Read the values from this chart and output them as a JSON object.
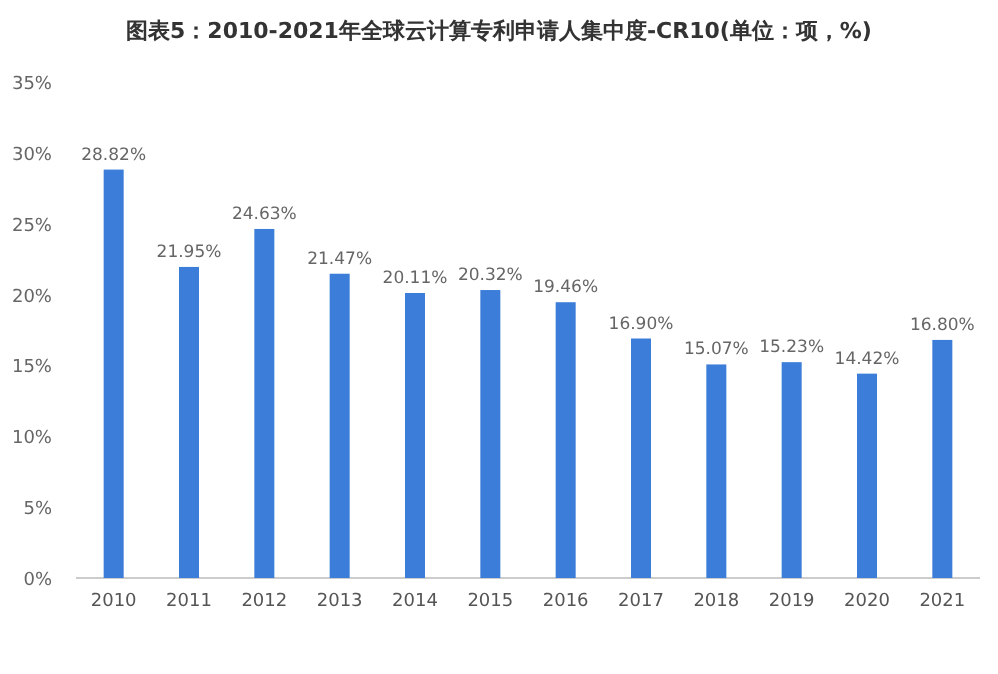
{
  "chart_data": {
    "type": "bar",
    "title": "图表5：2010-2021年全球云计算专利申请人集中度-CR10(单位：项，%)",
    "categories": [
      "2010",
      "2011",
      "2012",
      "2013",
      "2014",
      "2015",
      "2016",
      "2017",
      "2018",
      "2019",
      "2020",
      "2021"
    ],
    "values": [
      28.82,
      21.95,
      24.63,
      21.47,
      20.11,
      20.32,
      19.46,
      16.9,
      15.07,
      15.23,
      14.42,
      16.8
    ],
    "value_labels": [
      "28.82%",
      "21.95%",
      "24.63%",
      "21.47%",
      "20.11%",
      "20.32%",
      "19.46%",
      "16.90%",
      "15.07%",
      "15.23%",
      "14.42%",
      "16.80%"
    ],
    "color": "#3b7dd8",
    "ylim": [
      0,
      35
    ],
    "yticks": [
      {
        "value": 0,
        "label": "0%"
      },
      {
        "value": 5,
        "label": "5%"
      },
      {
        "value": 10,
        "label": "10%"
      },
      {
        "value": 15,
        "label": "15%"
      },
      {
        "value": 20,
        "label": "20%"
      },
      {
        "value": 25,
        "label": "25%"
      },
      {
        "value": 30,
        "label": "30%"
      },
      {
        "value": 35,
        "label": "35%"
      }
    ],
    "grid": false
  }
}
